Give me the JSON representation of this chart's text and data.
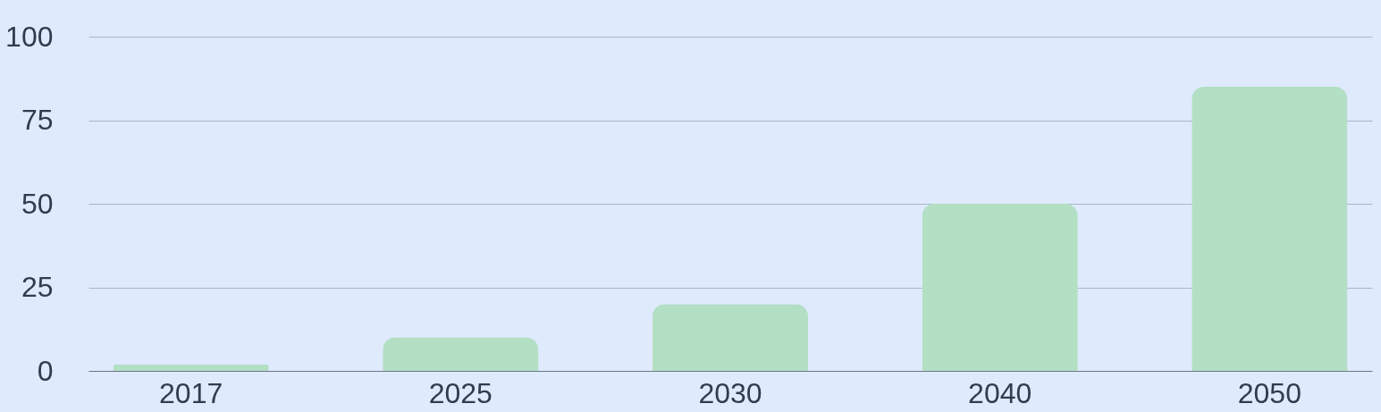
{
  "chart_data": {
    "type": "bar",
    "categories": [
      "2017",
      "2025",
      "2030",
      "2040",
      "2050"
    ],
    "values": [
      2,
      10,
      20,
      50,
      85
    ],
    "color": "#b3dfc4",
    "ylim": [
      0,
      100
    ],
    "yticks": [
      0,
      25,
      50,
      75,
      100
    ],
    "grid": "y"
  }
}
